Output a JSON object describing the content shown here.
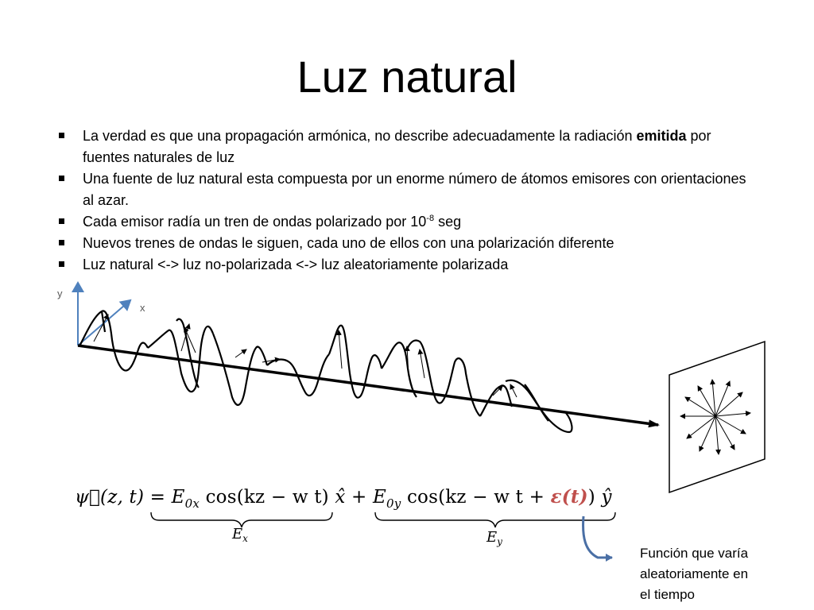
{
  "title": "Luz natural",
  "bullets": [
    {
      "before": "La verdad es que una propagación armónica, no describe adecuadamente la radiación ",
      "bold": "emitida",
      "after": " por fuentes naturales de luz"
    },
    {
      "text": "Una fuente de luz natural esta compuesta por un enorme número de átomos emisores con orientaciones al azar."
    },
    {
      "before": "Cada emisor radía un tren de ondas polarizado por  10",
      "sup": "-8",
      "after": " seg"
    },
    {
      "text": "Nuevos trenes de ondas le siguen, cada uno de ellos con una polarización diferente"
    },
    {
      "text": "Luz natural <-> luz no-polarizada <-> luz aleatoriamente polarizada"
    }
  ],
  "figure": {
    "axis_y": "y",
    "axis_x": "x"
  },
  "formula": {
    "lhs": "ψ⃗(z, t) = ",
    "e0x": "E",
    "e0x_sub": "0x",
    "cos1": " cos(kz − w t) ",
    "xhat": "x̂ + ",
    "e0y": "E",
    "e0y_sub": "0y",
    "cos2": " cos(kz − w t + ",
    "eps": "ε(t)",
    "close": ") ",
    "yhat": "ŷ"
  },
  "brace_labels": {
    "ex": "E",
    "ex_sub": "x",
    "ey": "E",
    "ey_sub": "y"
  },
  "note": "Función que varía\naleatoriamente en\nel tiempo",
  "colors": {
    "axis_blue": "#4f81bd",
    "arrow_blue": "#4a6fa5",
    "epsilon_red": "#c0504d"
  }
}
